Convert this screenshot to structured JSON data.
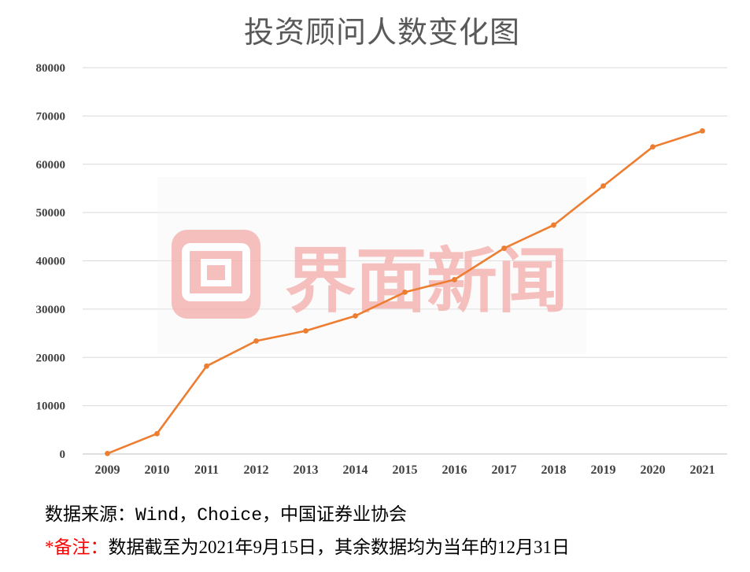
{
  "chart_data": {
    "type": "line",
    "title": "投资顾问人数变化图",
    "categories": [
      "2009",
      "2010",
      "2011",
      "2012",
      "2013",
      "2014",
      "2015",
      "2016",
      "2017",
      "2018",
      "2019",
      "2020",
      "2021"
    ],
    "series": [
      {
        "values": [
          100,
          4200,
          18200,
          23400,
          25500,
          28600,
          33500,
          36100,
          42600,
          47400,
          55500,
          63600,
          66900
        ],
        "color": "#ED7D31"
      }
    ],
    "ylim": [
      0,
      80000
    ],
    "yticks": [
      0,
      10000,
      20000,
      30000,
      40000,
      50000,
      60000,
      70000,
      80000
    ],
    "grid": true
  },
  "footer": {
    "source": "数据来源：Wind，Choice，中国证券业协会",
    "note_label": "*备注：",
    "note_text": "数据截至为2021年9月15日，其余数据均为当年的12月31日"
  },
  "watermark": {
    "text": "界面新闻",
    "color": "#F4B4B2"
  },
  "colors": {
    "title": "#595959",
    "note_label": "#FF0000",
    "gridline": "#D9D9D9",
    "axis": "#BFBFBF"
  }
}
